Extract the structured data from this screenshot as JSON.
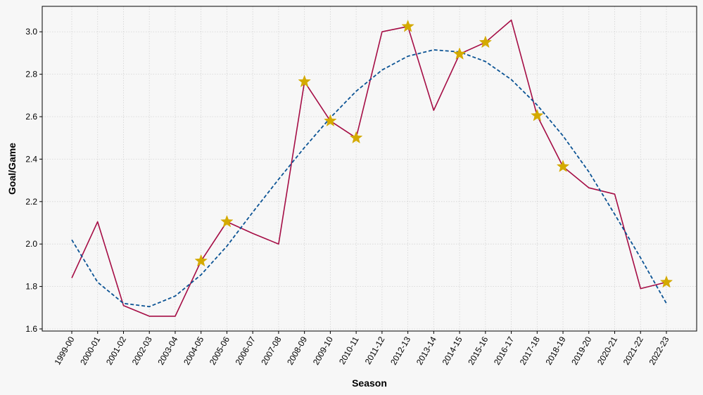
{
  "chart_data": {
    "type": "line",
    "title": "",
    "xlabel": "Season",
    "ylabel": "Goal/Game",
    "categories": [
      "1999-00",
      "2000-01",
      "2001-02",
      "2002-03",
      "2003-04",
      "2004-05",
      "2005-06",
      "2006-07",
      "2007-08",
      "2008-09",
      "2009-10",
      "2010-11",
      "2011-12",
      "2012-13",
      "2013-14",
      "2014-15",
      "2015-16",
      "2016-17",
      "2017-18",
      "2018-19",
      "2019-20",
      "2020-21",
      "2021-22",
      "2022-23"
    ],
    "ylim": [
      1.59,
      3.12
    ],
    "yticks": [
      "1.6",
      "1.8",
      "2.0",
      "2.2",
      "2.4",
      "2.6",
      "2.8",
      "3.0"
    ],
    "grid": true,
    "series": [
      {
        "style": "solid",
        "color": "#a50d45",
        "values": [
          1.84,
          2.105,
          1.71,
          1.66,
          1.66,
          1.92,
          2.105,
          2.05,
          2.0,
          2.765,
          2.58,
          2.5,
          3.0,
          3.025,
          2.63,
          2.895,
          2.95,
          3.055,
          2.605,
          2.365,
          2.265,
          2.235,
          1.79,
          1.82
        ]
      },
      {
        "style": "dashed",
        "color": "#0b5394",
        "values": [
          2.02,
          1.82,
          1.72,
          1.705,
          1.755,
          1.855,
          1.99,
          2.15,
          2.305,
          2.455,
          2.595,
          2.72,
          2.82,
          2.885,
          2.915,
          2.905,
          2.86,
          2.775,
          2.655,
          2.51,
          2.34,
          2.14,
          1.935,
          1.72
        ]
      }
    ],
    "markers": {
      "shape": "star",
      "color": "#d4aa00",
      "points": [
        {
          "x": "2004-05",
          "y": 1.92
        },
        {
          "x": "2005-06",
          "y": 2.105
        },
        {
          "x": "2008-09",
          "y": 2.765
        },
        {
          "x": "2009-10",
          "y": 2.58
        },
        {
          "x": "2010-11",
          "y": 2.5
        },
        {
          "x": "2012-13",
          "y": 3.025
        },
        {
          "x": "2014-15",
          "y": 2.895
        },
        {
          "x": "2015-16",
          "y": 2.95
        },
        {
          "x": "2017-18",
          "y": 2.605
        },
        {
          "x": "2018-19",
          "y": 2.365
        },
        {
          "x": "2022-23",
          "y": 1.82
        }
      ]
    }
  }
}
